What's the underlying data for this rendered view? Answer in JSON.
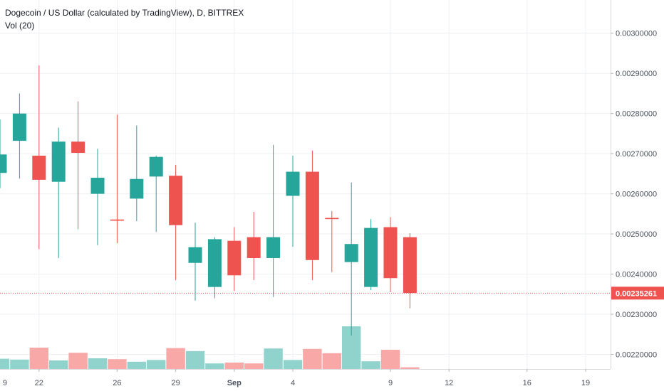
{
  "legend": {
    "title": "Dogecoin / US Dollar (calculated by TradingView), D, BITTREX",
    "volume": "Vol (20)"
  },
  "colors": {
    "up": "#26a69a",
    "down": "#ef5350",
    "up_volume": "#8fd3cc",
    "down_volume": "#f7a8a7",
    "grid": "#eef0f3",
    "axis_text": "#4c525e",
    "price_line": "#ef5350"
  },
  "chart_data": {
    "type": "candlestick",
    "ylim": [
      0.002185,
      0.003042
    ],
    "y_ticks": [
      "0.00300000",
      "0.00290000",
      "0.00280000",
      "0.00270000",
      "0.00260000",
      "0.00250000",
      "0.00240000",
      "0.00230000",
      "0.00220000"
    ],
    "y_tick_values": [
      0.003,
      0.0029,
      0.0028,
      0.0027,
      0.0026,
      0.0025,
      0.0024,
      0.0023,
      0.0022
    ],
    "x_ticks": [
      {
        "label": "22",
        "index": 2
      },
      {
        "label": "26",
        "index": 6
      },
      {
        "label": "29",
        "index": 9
      },
      {
        "label": "Sep",
        "index": 12
      },
      {
        "label": "4",
        "index": 15
      },
      {
        "label": "9",
        "index": 20
      },
      {
        "label": "12",
        "index": 23
      },
      {
        "label": "16",
        "index": 27
      },
      {
        "label": "19",
        "index": 30
      }
    ],
    "edge_tick": "9",
    "last_price": {
      "value": 0.00235261,
      "label": "0.00235261"
    },
    "candles": [
      {
        "o": 0.002652,
        "h": 0.002785,
        "l": 0.002614,
        "c": 0.002698
      },
      {
        "o": 0.002732,
        "h": 0.00285,
        "l": 0.002638,
        "c": 0.0028
      },
      {
        "o": 0.002695,
        "h": 0.00292,
        "l": 0.002462,
        "c": 0.002635
      },
      {
        "o": 0.00263,
        "h": 0.002765,
        "l": 0.00244,
        "c": 0.00273
      },
      {
        "o": 0.00273,
        "h": 0.00283,
        "l": 0.002512,
        "c": 0.002702
      },
      {
        "o": 0.0026,
        "h": 0.002712,
        "l": 0.002472,
        "c": 0.00264
      },
      {
        "o": 0.002536,
        "h": 0.002797,
        "l": 0.002477,
        "c": 0.002533
      },
      {
        "o": 0.002588,
        "h": 0.00277,
        "l": 0.002532,
        "c": 0.002637
      },
      {
        "o": 0.002643,
        "h": 0.002695,
        "l": 0.002505,
        "c": 0.002692
      },
      {
        "o": 0.002645,
        "h": 0.002672,
        "l": 0.002385,
        "c": 0.002522
      },
      {
        "o": 0.002428,
        "h": 0.002528,
        "l": 0.002334,
        "c": 0.002467
      },
      {
        "o": 0.002368,
        "h": 0.002492,
        "l": 0.00234,
        "c": 0.002487
      },
      {
        "o": 0.002483,
        "h": 0.002517,
        "l": 0.002358,
        "c": 0.002397
      },
      {
        "o": 0.002492,
        "h": 0.002555,
        "l": 0.002385,
        "c": 0.00244
      },
      {
        "o": 0.00244,
        "h": 0.002722,
        "l": 0.002343,
        "c": 0.002492
      },
      {
        "o": 0.002595,
        "h": 0.002695,
        "l": 0.002468,
        "c": 0.002655
      },
      {
        "o": 0.002655,
        "h": 0.002708,
        "l": 0.002385,
        "c": 0.002435
      },
      {
        "o": 0.00254,
        "h": 0.002557,
        "l": 0.002405,
        "c": 0.002537
      },
      {
        "o": 0.00243,
        "h": 0.002628,
        "l": 0.002247,
        "c": 0.002475
      },
      {
        "o": 0.002368,
        "h": 0.002537,
        "l": 0.00236,
        "c": 0.002515
      },
      {
        "o": 0.002517,
        "h": 0.002542,
        "l": 0.002355,
        "c": 0.00239
      },
      {
        "o": 0.002492,
        "h": 0.002502,
        "l": 0.002315,
        "c": 0.002353
      }
    ],
    "volume": [
      0.24,
      0.22,
      0.5,
      0.2,
      0.38,
      0.25,
      0.23,
      0.17,
      0.21,
      0.49,
      0.42,
      0.13,
      0.15,
      0.13,
      0.48,
      0.21,
      0.47,
      0.37,
      1.0,
      0.18,
      0.45,
      0.04
    ]
  }
}
